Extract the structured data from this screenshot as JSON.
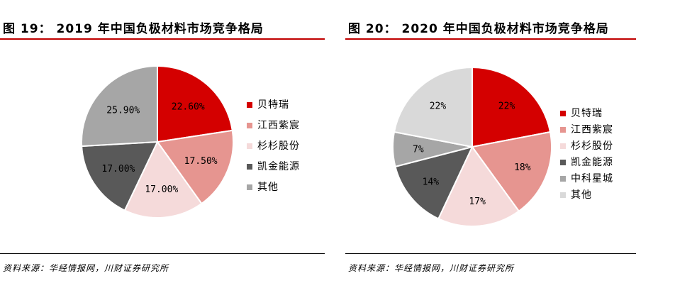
{
  "charts": [
    {
      "title": "图 19： 2019 年中国负极材料市场竞争格局",
      "source": "资料来源：华经情报网，川财证券研究所"
    },
    {
      "title": "图 20： 2020 年中国负极材料市场竞争格局",
      "source": "资料来源：华经情报网，川财证券研究所"
    }
  ],
  "chart_data": [
    {
      "type": "pie",
      "title": "2019 年中国负极材料市场竞争格局",
      "legend_position": "right",
      "slices": [
        {
          "label": "贝特瑞",
          "value": 22.6,
          "display": "22.60%",
          "color": "#d40000"
        },
        {
          "label": "江西紫宸",
          "value": 17.5,
          "display": "17.50%",
          "color": "#e69590"
        },
        {
          "label": "杉杉股份",
          "value": 17.0,
          "display": "17.00%",
          "color": "#f5dada"
        },
        {
          "label": "凯金能源",
          "value": 17.0,
          "display": "17.00%",
          "color": "#595959"
        },
        {
          "label": "其他",
          "value": 25.9,
          "display": "25.90%",
          "color": "#a6a6a6"
        }
      ]
    },
    {
      "type": "pie",
      "title": "2020 年中国负极材料市场竞争格局",
      "legend_position": "right",
      "slices": [
        {
          "label": "贝特瑞",
          "value": 22,
          "display": "22%",
          "color": "#d40000"
        },
        {
          "label": "江西紫宸",
          "value": 18,
          "display": "18%",
          "color": "#e69590"
        },
        {
          "label": "杉杉股份",
          "value": 17,
          "display": "17%",
          "color": "#f5dada"
        },
        {
          "label": "凯金能源",
          "value": 14,
          "display": "14%",
          "color": "#595959"
        },
        {
          "label": "中科星城",
          "value": 7,
          "display": "7%",
          "color": "#a6a6a6"
        },
        {
          "label": "其他",
          "value": 22,
          "display": "22%",
          "color": "#d9d9d9"
        }
      ]
    }
  ]
}
